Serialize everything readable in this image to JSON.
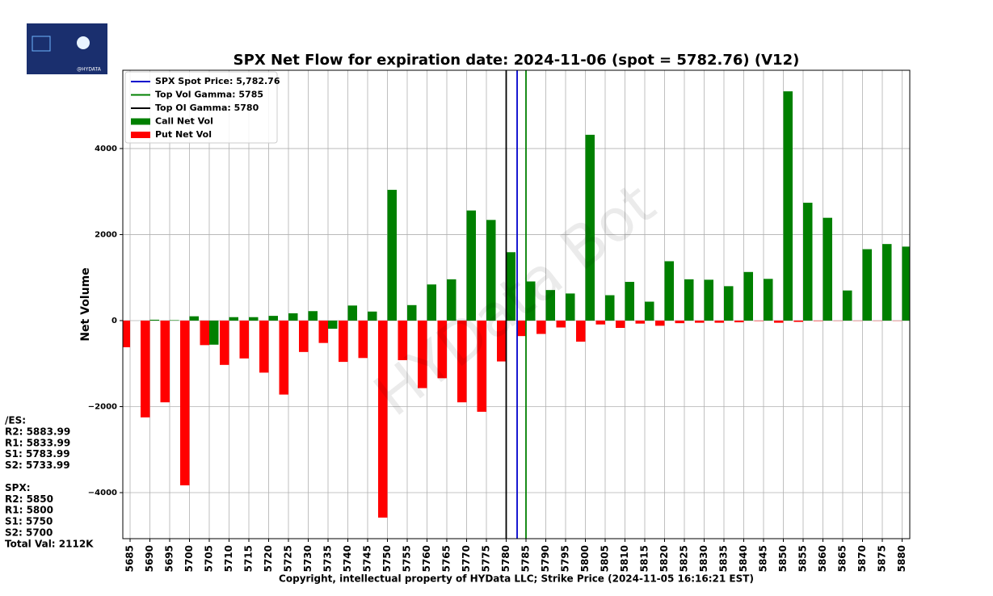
{
  "chart_data": {
    "type": "bar",
    "title": "SPX Net Flow for expiration date: 2024-11-06 (spot = 5782.76) (V12)",
    "x_label": "Copyright, intellectual property of HYData LLC; Strike Price (2024-11-05 16:16:21 EST)",
    "y_label": "Net Volume",
    "watermark": "HYData Bot",
    "logo_text": "@HYDATA",
    "categories": [
      5685,
      5690,
      5695,
      5700,
      5705,
      5710,
      5715,
      5720,
      5725,
      5730,
      5735,
      5740,
      5745,
      5750,
      5755,
      5760,
      5765,
      5770,
      5775,
      5780,
      5785,
      5790,
      5795,
      5800,
      5805,
      5810,
      5815,
      5820,
      5825,
      5830,
      5835,
      5840,
      5845,
      5850,
      5855,
      5860,
      5865,
      5870,
      5875,
      5880
    ],
    "series": [
      {
        "name": "Call Net Vol",
        "color": "#008000",
        "values": [
          0,
          20,
          10,
          100,
          -560,
          80,
          80,
          110,
          170,
          220,
          -190,
          350,
          210,
          3040,
          360,
          840,
          960,
          2560,
          2340,
          1590,
          910,
          710,
          630,
          4320,
          590,
          900,
          440,
          1380,
          960,
          950,
          800,
          1130,
          970,
          5330,
          2740,
          2390,
          700,
          1660,
          1780,
          1720
        ]
      },
      {
        "name": "Put Net Vol",
        "color": "#ff0000",
        "values": [
          -620,
          -2250,
          -1900,
          -3830,
          -570,
          -1030,
          -880,
          -1210,
          -1720,
          -730,
          -520,
          -960,
          -870,
          -4580,
          -920,
          -1570,
          -1340,
          -1900,
          -2120,
          -950,
          -360,
          -310,
          -160,
          -490,
          -90,
          -170,
          -70,
          -120,
          -60,
          -50,
          -50,
          -40,
          -10,
          -50,
          -30,
          -10,
          -5,
          -5,
          -5,
          -5
        ]
      }
    ],
    "lines": [
      {
        "name": "SPX Spot Price: 5,782.76",
        "value": 5782.76,
        "color": "#0000cc"
      },
      {
        "name": "Top Vol Gamma: 5785",
        "value": 5785,
        "color": "#008000"
      },
      {
        "name": "Top OI Gamma: 5780",
        "value": 5780,
        "color": "#000000"
      }
    ],
    "ylim": [
      -5070,
      5820
    ],
    "yticks": [
      {
        "value": -4000,
        "label": "−4000"
      },
      {
        "value": -2000,
        "label": "−2000"
      },
      0,
      2000,
      4000
    ],
    "grid": true,
    "legend": "upper left",
    "side_text": [
      "/ES:",
      "R2: 5883.99",
      "R1: 5833.99",
      "S1: 5783.99",
      "S2: 5733.99",
      "",
      "SPX:",
      "R2: 5850",
      "R1: 5800",
      "S1: 5750",
      "S2: 5700",
      "Total Val: 2112K"
    ]
  }
}
